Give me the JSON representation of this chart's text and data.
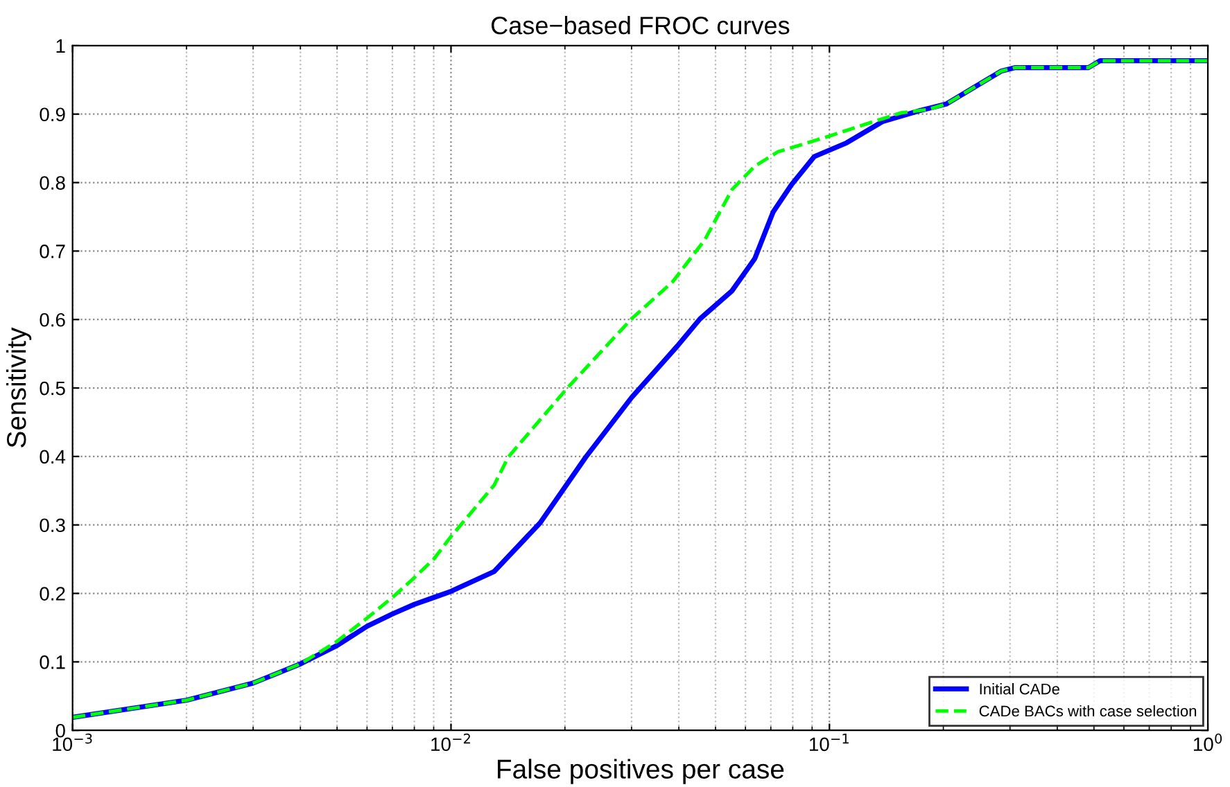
{
  "chart_data": {
    "type": "line",
    "title": "Case−based FROC curves",
    "xlabel": "False positives per case",
    "ylabel": "Sensitivity",
    "log": "x",
    "grid": true,
    "legend": "bottom right",
    "xlim": [
      0.001,
      1
    ],
    "ylim": [
      0,
      1
    ],
    "xticks": [
      {
        "value": 0.001,
        "label": "10$^{−3}$"
      },
      {
        "value": 0.01,
        "label": "10$^{−2}$"
      },
      {
        "value": 0.1,
        "label": "10$^{−1}$"
      },
      {
        "value": 1,
        "label": "10$^{0}$"
      }
    ],
    "yticks": [
      0,
      0.1,
      0.2,
      0.3,
      0.4,
      0.5,
      0.6,
      0.7,
      0.8,
      0.9,
      1
    ],
    "series": [
      {
        "name": "Initial CADe",
        "color": "#0000ff",
        "line_style": "solid",
        "x": [
          0.001,
          0.002,
          0.003,
          0.004,
          0.005,
          0.006,
          0.007,
          0.008,
          0.009,
          0.01,
          0.013,
          0.0172,
          0.0227,
          0.03,
          0.0396,
          0.0455,
          0.0553,
          0.0635,
          0.071,
          0.0794,
          0.0912,
          0.111,
          0.138,
          0.173,
          0.204,
          0.241,
          0.285,
          0.31,
          0.484,
          0.519,
          1
        ],
        "values": [
          0.019,
          0.044,
          0.069,
          0.097,
          0.124,
          0.152,
          0.17,
          0.184,
          0.194,
          0.203,
          0.232,
          0.303,
          0.399,
          0.486,
          0.561,
          0.601,
          0.642,
          0.689,
          0.757,
          0.797,
          0.838,
          0.858,
          0.889,
          0.905,
          0.915,
          0.939,
          0.963,
          0.968,
          0.968,
          0.978,
          0.978
        ]
      },
      {
        "name": "CADe BACs with case selection",
        "color": "#00ff00",
        "line_style": "dashed",
        "x": [
          0.001,
          0.002,
          0.003,
          0.004,
          0.005,
          0.006,
          0.007,
          0.008,
          0.009,
          0.01,
          0.013,
          0.01416,
          0.0203,
          0.03,
          0.0385,
          0.0468,
          0.0553,
          0.0635,
          0.0731,
          0.084,
          0.1,
          0.124,
          0.155,
          0.183,
          0.204,
          0.241,
          0.285,
          0.31,
          0.484,
          0.519,
          1
        ],
        "values": [
          0.019,
          0.044,
          0.069,
          0.097,
          0.13,
          0.164,
          0.194,
          0.223,
          0.25,
          0.283,
          0.358,
          0.399,
          0.5,
          0.601,
          0.655,
          0.716,
          0.79,
          0.824,
          0.845,
          0.855,
          0.868,
          0.885,
          0.902,
          0.907,
          0.915,
          0.939,
          0.963,
          0.968,
          0.968,
          0.978,
          0.978
        ]
      }
    ]
  }
}
